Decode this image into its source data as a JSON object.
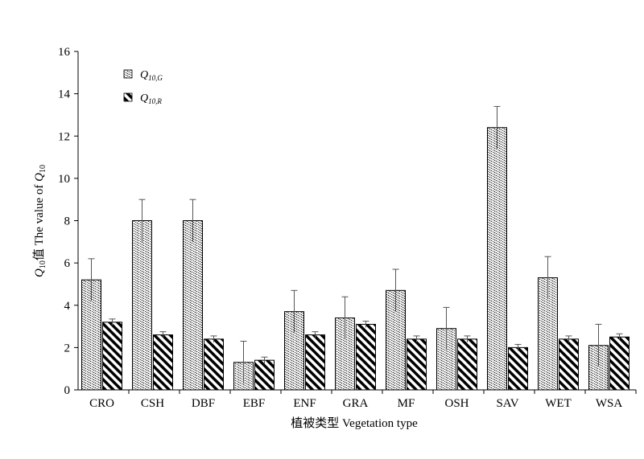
{
  "chart_data": {
    "type": "bar",
    "xlabel": "植被类型  Vegetation type",
    "ylabel_prefix": "Q",
    "ylabel_sub": "10",
    "ylabel_middle": "值 The value of ",
    "ylabel_prefix2": "Q",
    "ylabel_sub2": "10",
    "ylim": [
      0,
      16
    ],
    "yticks": [
      0,
      2,
      4,
      6,
      8,
      10,
      12,
      14,
      16
    ],
    "categories": [
      "CRO",
      "CSH",
      "DBF",
      "EBF",
      "ENF",
      "GRA",
      "MF",
      "OSH",
      "SAV",
      "WET",
      "WSA"
    ],
    "series": [
      {
        "legend_main": "Q",
        "legend_sub": "10,G",
        "pattern": "dotted",
        "values": [
          5.2,
          8.0,
          8.0,
          1.3,
          3.7,
          3.4,
          4.7,
          2.9,
          12.4,
          5.3,
          2.1
        ],
        "errors": [
          1.0,
          1.0,
          1.0,
          1.0,
          1.0,
          1.0,
          1.0,
          1.0,
          1.0,
          1.0,
          1.0
        ]
      },
      {
        "legend_main": "Q",
        "legend_sub": "10,R",
        "pattern": "diagonal",
        "values": [
          3.2,
          2.6,
          2.4,
          1.4,
          2.6,
          3.1,
          2.4,
          2.4,
          2.0,
          2.4,
          2.5
        ],
        "errors": [
          0.15,
          0.15,
          0.15,
          0.15,
          0.15,
          0.15,
          0.15,
          0.15,
          0.15,
          0.15,
          0.15
        ]
      }
    ]
  }
}
